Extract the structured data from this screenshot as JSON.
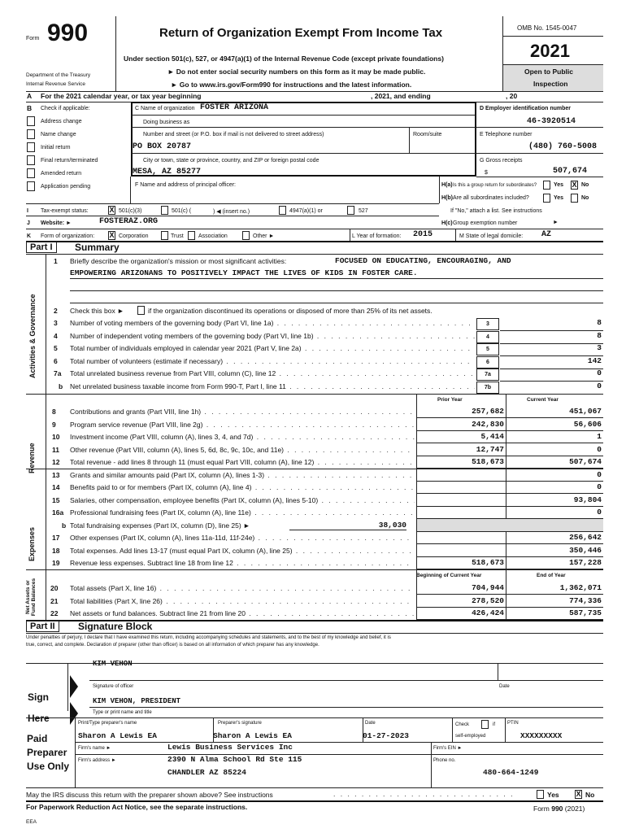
{
  "header": {
    "form_label": "Form",
    "form_number": "990",
    "title": "Return of Organization Exempt From Income Tax",
    "subtitle": "Under section 501(c), 527, or 4947(a)(1) of the Internal Revenue Code (except private foundations)",
    "notice1": "► Do not enter social security numbers on this form as it may be made public.",
    "notice2": "► Go to www.irs.gov/Form990 for instructions and the latest information.",
    "dept1": "Department of the Treasury",
    "dept2": "Internal Revenue Service",
    "omb": "OMB No. 1545-0047",
    "year": "2021",
    "open1": "Open to Public",
    "open2": "Inspection"
  },
  "rowA": {
    "letter": "A",
    "text": "For the 2021 calendar year, or tax year beginning",
    "mid": ", 2021, and ending",
    "end": ", 20"
  },
  "B": {
    "letter": "B",
    "label": "Check if applicable:",
    "items": [
      {
        "label": "Address change",
        "checked": false
      },
      {
        "label": "Name change",
        "checked": false
      },
      {
        "label": "Initial return",
        "checked": false
      },
      {
        "label": "Final return/terminated",
        "checked": false
      },
      {
        "label": "Amended return",
        "checked": false
      },
      {
        "label": "Application pending",
        "checked": false
      }
    ]
  },
  "C": {
    "name_label": "C Name of organization",
    "name": "FOSTER ARIZONA",
    "dba_label": "Doing business as",
    "street_label": "Number and street (or P.O. box if mail is not delivered to street address)",
    "room_label": "Room/suite",
    "street": "PO BOX 20787",
    "city_label": "City or town, state or province, country, and ZIP or foreign postal code",
    "city": "MESA, AZ 85277"
  },
  "D": {
    "label": "D  Employer identification number",
    "value": "46-3920514"
  },
  "E": {
    "label": "E  Telephone number",
    "value": "(480) 760-5008"
  },
  "G": {
    "label": "G  Gross receipts",
    "currency": "$",
    "value": "507,674"
  },
  "F": {
    "label": "F  Name and address of principal officer:"
  },
  "H": {
    "ha": "H(a)",
    "ha_text": "Is this a group return for subordinates?",
    "hb": "H(b)",
    "hb_text": "Are all subordinates included?",
    "yes": "Yes",
    "no": "No",
    "ha_answer": "No",
    "hint": "If \"No,\" attach a list. See instructions",
    "hc": "H(c)",
    "hc_text": "Group exemption number",
    "arrow": "►"
  },
  "I": {
    "letter": "I",
    "label": "Tax-exempt status:",
    "opt1": "501(c)(3)",
    "opt2": "501(c) (",
    "opt2b": ") ◀ (insert no.)",
    "opt3": "4947(a)(1) or",
    "opt4": "527",
    "checked": "501(c)(3)"
  },
  "J": {
    "letter": "J",
    "label": "Website: ►",
    "value": "FOSTERAZ.ORG"
  },
  "K": {
    "letter": "K",
    "label": "Form of organization:",
    "opts": [
      "Corporation",
      "Trust",
      "Association",
      "Other ►"
    ],
    "checked": "Corporation"
  },
  "L": {
    "label": "L  Year of formation:",
    "value": "2015"
  },
  "M": {
    "label": "M  State of legal domicile:",
    "value": "AZ"
  },
  "part1": {
    "tag": "Part I",
    "title": "Summary",
    "side1": "Activities & Governance",
    "side2": "Revenue",
    "side3": "Expenses",
    "side4": "Net Assets or Fund Balances",
    "line1_num": "1",
    "line1_text": "Briefly describe the organization's mission or most significant activities:",
    "mission1": "FOCUSED ON EDUCATING, ENCOURAGING, AND",
    "mission2": "EMPOWERING ARIZONANS TO POSITIVELY IMPACT THE LIVES OF KIDS IN FOSTER CARE.",
    "line2_num": "2",
    "line2_text": "Check this box ►",
    "line2_rest": "if the organization discontinued its operations or disposed of more than 25% of its net assets.",
    "gov_lines": [
      {
        "num": "3",
        "text": "Number of voting members of the governing body (Part VI, line 1a)",
        "box": "3",
        "value": "8"
      },
      {
        "num": "4",
        "text": "Number of independent voting members of the governing body (Part VI, line 1b)",
        "box": "4",
        "value": "8"
      },
      {
        "num": "5",
        "text": "Total number of individuals employed in calendar year 2021 (Part V, line 2a)",
        "box": "5",
        "value": "3"
      },
      {
        "num": "6",
        "text": "Total number of volunteers (estimate if necessary)",
        "box": "6",
        "value": "142"
      },
      {
        "num": "7a",
        "text": "Total unrelated business revenue from Part VIII, column (C), line 12",
        "box": "7a",
        "value": "0"
      },
      {
        "num": "b",
        "text": "Net unrelated business taxable income from Form 990-T, Part I, line 11",
        "box": "7b",
        "value": "0"
      }
    ],
    "col_prior": "Prior Year",
    "col_current": "Current Year",
    "fin_lines": [
      {
        "num": "8",
        "text": "Contributions and grants (Part VIII, line 1h)",
        "prior": "257,682",
        "current": "451,067"
      },
      {
        "num": "9",
        "text": "Program service revenue (Part VIII, line 2g)",
        "prior": "242,830",
        "current": "56,606"
      },
      {
        "num": "10",
        "text": "Investment income (Part VIII, column (A), lines 3, 4, and 7d)",
        "prior": "5,414",
        "current": "1"
      },
      {
        "num": "11",
        "text": "Other revenue (Part VIII, column (A), lines 5, 6d, 8c, 9c, 10c, and 11e)",
        "prior": "12,747",
        "current": "0"
      },
      {
        "num": "12",
        "text": "Total revenue - add lines 8 through 11 (must equal Part VIII, column (A), line 12)",
        "prior": "518,673",
        "current": "507,674"
      },
      {
        "num": "13",
        "text": "Grants and similar amounts paid (Part IX, column (A), lines 1-3)",
        "prior": "",
        "current": "0"
      },
      {
        "num": "14",
        "text": "Benefits paid to or for members (Part IX, column (A), line 4)",
        "prior": "",
        "current": "0"
      },
      {
        "num": "15",
        "text": "Salaries, other compensation, employee benefits (Part IX, column (A), lines 5-10)",
        "prior": "",
        "current": "93,804"
      },
      {
        "num": "16a",
        "text": "Professional fundraising fees (Part IX, column (A), line 11e)",
        "prior": "",
        "current": "0"
      },
      {
        "num": "b",
        "text": "Total fundraising expenses (Part IX, column (D), line 25) ►",
        "inline": "38,030",
        "prior": "",
        "current": ""
      },
      {
        "num": "17",
        "text": "Other expenses (Part IX, column (A), lines 11a-11d, 11f-24e)",
        "prior": "",
        "current": "256,642"
      },
      {
        "num": "18",
        "text": "Total expenses. Add lines 13-17 (must equal Part IX, column (A), line 25)",
        "prior": "",
        "current": "350,446"
      },
      {
        "num": "19",
        "text": "Revenue less expenses. Subtract line 18 from line 12",
        "prior": "518,673",
        "current": "157,228"
      }
    ],
    "col_begin": "Beginning of Current Year",
    "col_end": "End of Year",
    "net_lines": [
      {
        "num": "20",
        "text": "Total assets (Part X, line 16)",
        "begin": "704,944",
        "end": "1,362,071"
      },
      {
        "num": "21",
        "text": "Total liabilities (Part X, line 26)",
        "begin": "278,520",
        "end": "774,336"
      },
      {
        "num": "22",
        "text": "Net assets or fund balances. Subtract line 21 from line 20",
        "begin": "426,424",
        "end": "587,735"
      }
    ]
  },
  "part2": {
    "tag": "Part II",
    "title": "Signature Block",
    "perjury1": "Under penalties of perjury, I declare that I have examined this return, including accompanying schedules and statements, and to the best of my knowledge and belief, it is",
    "perjury2": "true, correct, and complete. Declaration of preparer (other than officer) is based on all information of which preparer has any knowledge.",
    "sign1": "Sign",
    "sign2": "Here",
    "officer_sig": "KIM VEHON",
    "officer_sig_label": "Signature of officer",
    "date_label": "Date",
    "officer_name": "KIM VEHON, PRESIDENT",
    "officer_name_label": "Type or print name and title"
  },
  "preparer": {
    "h1": "Paid",
    "h2": "Preparer",
    "h3": "Use Only",
    "name_label": "Print/Type preparer's name",
    "name": "Sharon A Lewis EA",
    "sig_label": "Preparer's signature",
    "sig": "Sharon A Lewis EA",
    "date_label": "Date",
    "date": "01-27-2023",
    "check_label": "Check",
    "if": "if",
    "self": "self-employed",
    "ptin_label": "PTIN",
    "ptin": "XXXXXXXXX",
    "firm_label": "Firm's name   ►",
    "firm": "Lewis Business Services Inc",
    "ein_label": "Firm's EIN  ►",
    "addr_label": "Firm's address ►",
    "addr1": "2390 N Alma School Rd Ste 115",
    "addr2": "CHANDLER AZ 85224",
    "phone_label": "Phone no.",
    "phone": "480-664-1249"
  },
  "footer": {
    "discuss": "May the IRS discuss this return with the preparer shown above? See instructions",
    "yes": "Yes",
    "no": "No",
    "answer": "No",
    "paperwork": "For Paperwork Reduction Act Notice, see the separate instructions.",
    "form_ref_pre": "Form",
    "form_ref_num": "990",
    "form_ref_post": "(2021)",
    "eea": "EEA"
  }
}
